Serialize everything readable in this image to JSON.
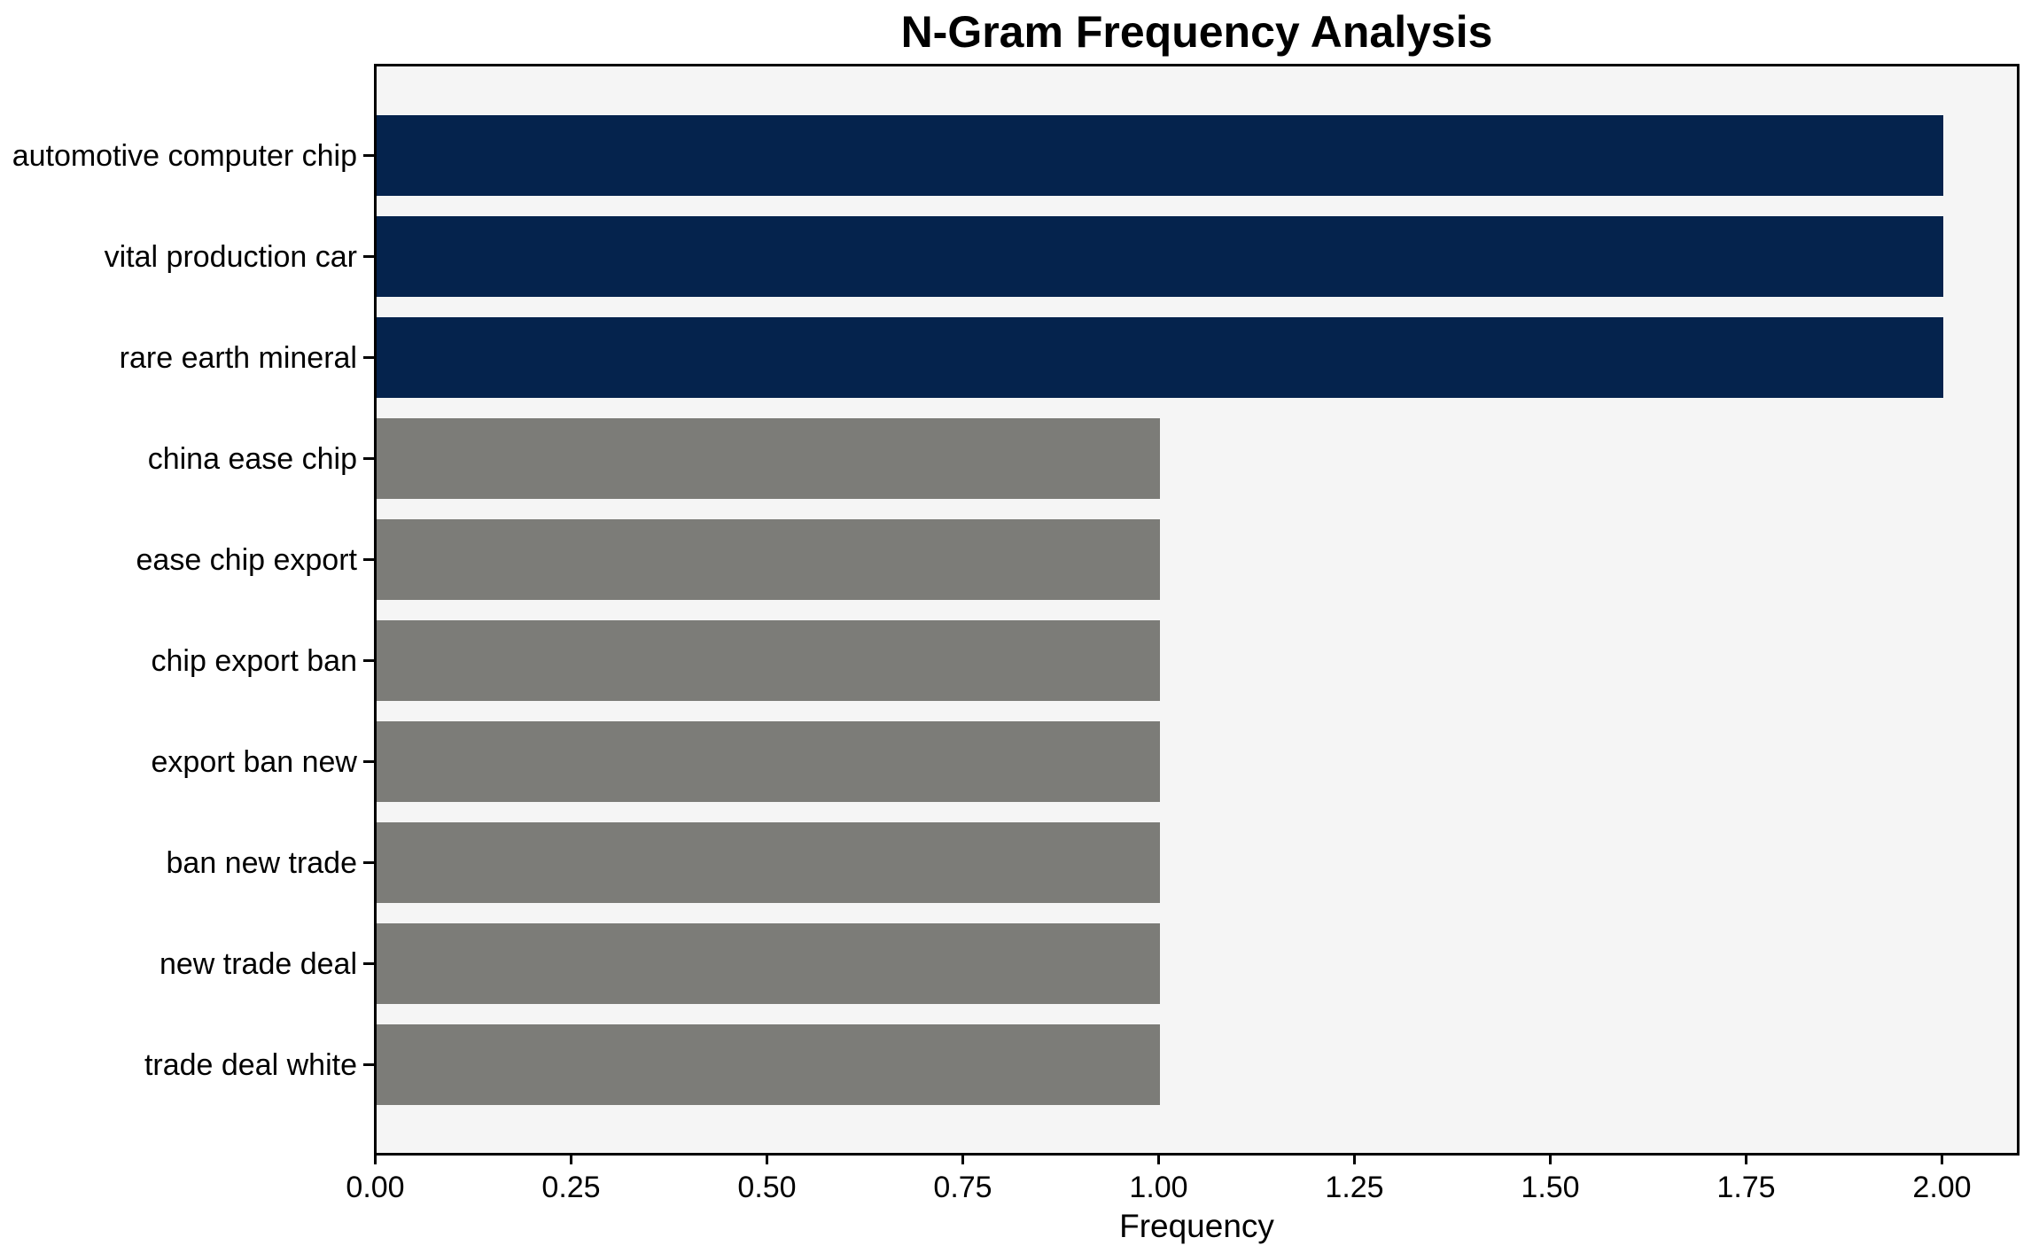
{
  "chart_data": {
    "type": "bar",
    "orientation": "horizontal",
    "title": "N-Gram Frequency Analysis",
    "xlabel": "Frequency",
    "ylabel": "",
    "categories": [
      "automotive computer chip",
      "vital production car",
      "rare earth mineral",
      "china ease chip",
      "ease chip export",
      "chip export ban",
      "export ban new",
      "ban new trade",
      "new trade deal",
      "trade deal white"
    ],
    "values": [
      2,
      2,
      2,
      1,
      1,
      1,
      1,
      1,
      1,
      1
    ],
    "bar_colors": [
      "#05234d",
      "#05234d",
      "#05234d",
      "#7c7c78",
      "#7c7c78",
      "#7c7c78",
      "#7c7c78",
      "#7c7c78",
      "#7c7c78",
      "#7c7c78"
    ],
    "xlim": [
      0,
      2.1
    ],
    "xtick_values": [
      0,
      0.25,
      0.5,
      0.75,
      1.0,
      1.25,
      1.5,
      1.75,
      2.0
    ],
    "xtick_labels": [
      "0.00",
      "0.25",
      "0.50",
      "0.75",
      "1.00",
      "1.25",
      "1.50",
      "1.75",
      "2.00"
    ],
    "grid": false,
    "legend": null,
    "plot_background": "#f5f5f5",
    "highlight_color": "#05234d",
    "muted_color": "#7c7c78",
    "text_color": "#000000"
  }
}
